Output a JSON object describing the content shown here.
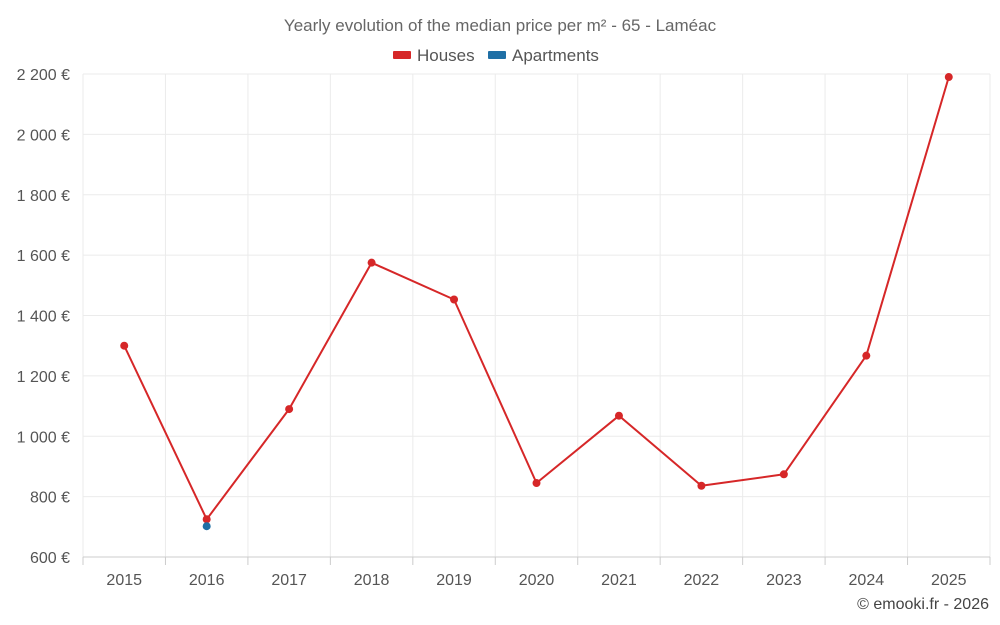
{
  "chart_data": {
    "type": "line",
    "title": "Yearly evolution of the median price per m² - 65 - Laméac",
    "x": [
      "2015",
      "2016",
      "2017",
      "2018",
      "2019",
      "2020",
      "2021",
      "2022",
      "2023",
      "2024",
      "2025"
    ],
    "ylim": [
      600,
      2200
    ],
    "yticks": [
      600,
      800,
      1000,
      1200,
      1400,
      1600,
      1800,
      2000,
      2200
    ],
    "ytick_labels": [
      "600 €",
      "800 €",
      "1 000 €",
      "1 200 €",
      "1 400 €",
      "1 600 €",
      "1 800 €",
      "2 000 €",
      "2 200 €"
    ],
    "grid": true,
    "legend_position": "top-center",
    "series": [
      {
        "name": "Houses",
        "color": "#d62728",
        "values": [
          1300,
          725,
          1090,
          1575,
          1453,
          845,
          1068,
          836,
          874,
          1267,
          2190
        ]
      },
      {
        "name": "Apartments",
        "color": "#1f6fa5",
        "values": [
          null,
          702,
          null,
          null,
          null,
          null,
          null,
          null,
          null,
          null,
          null
        ]
      }
    ],
    "credit": "© emooki.fr - 2026"
  }
}
